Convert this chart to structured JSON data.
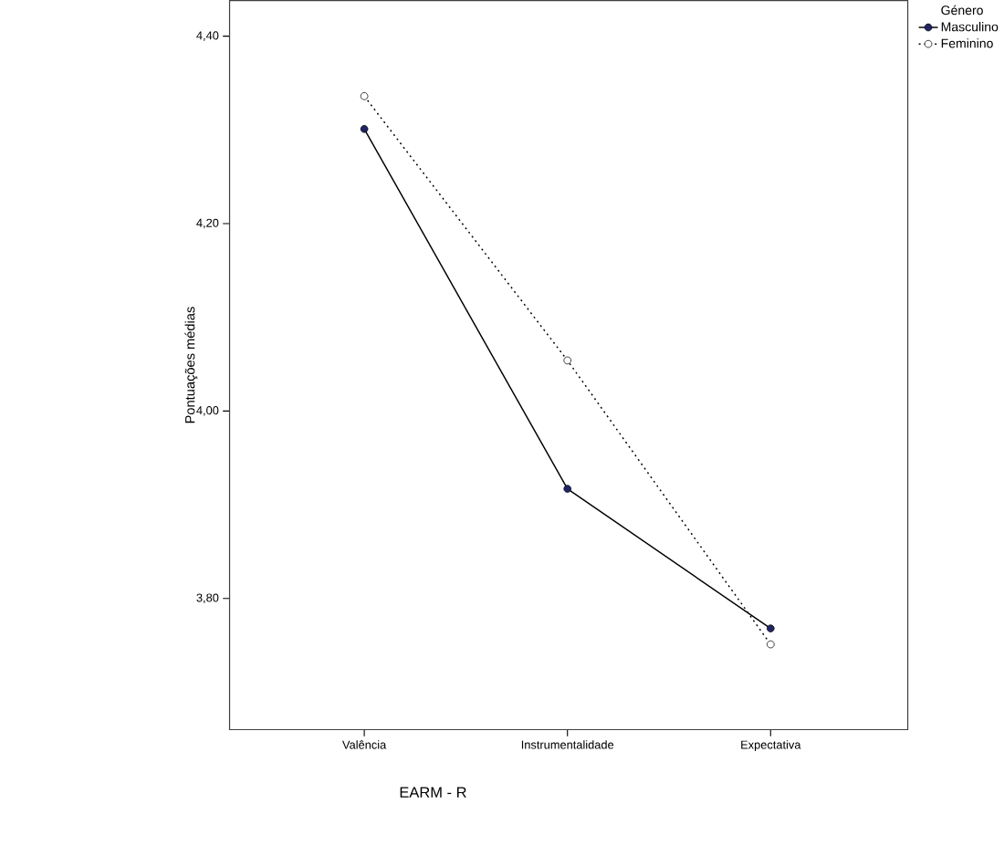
{
  "chart_data": {
    "type": "line",
    "xlabel": "EARM - R",
    "ylabel": "Pontuações médias",
    "legend_title": "Género",
    "legend": "top right",
    "marker": "circle",
    "categories": [
      "Valência",
      "Instrumentalidade",
      "Expectativa"
    ],
    "ylim": [
      3.66,
      4.438
    ],
    "yticks": [
      {
        "value": 3.8,
        "label": "3,80"
      },
      {
        "value": 4.0,
        "label": "4,00"
      },
      {
        "value": 4.2,
        "label": "4,20"
      },
      {
        "value": 4.4,
        "label": "4,40"
      }
    ],
    "series": [
      {
        "name": "Masculino",
        "color": "#1f2466",
        "line_style": "solid",
        "values": [
          4.301,
          3.917,
          3.768
        ]
      },
      {
        "name": "Feminino",
        "color": "#ffffff",
        "line_style": "dotted",
        "values": [
          4.336,
          4.054,
          3.751
        ]
      }
    ]
  }
}
